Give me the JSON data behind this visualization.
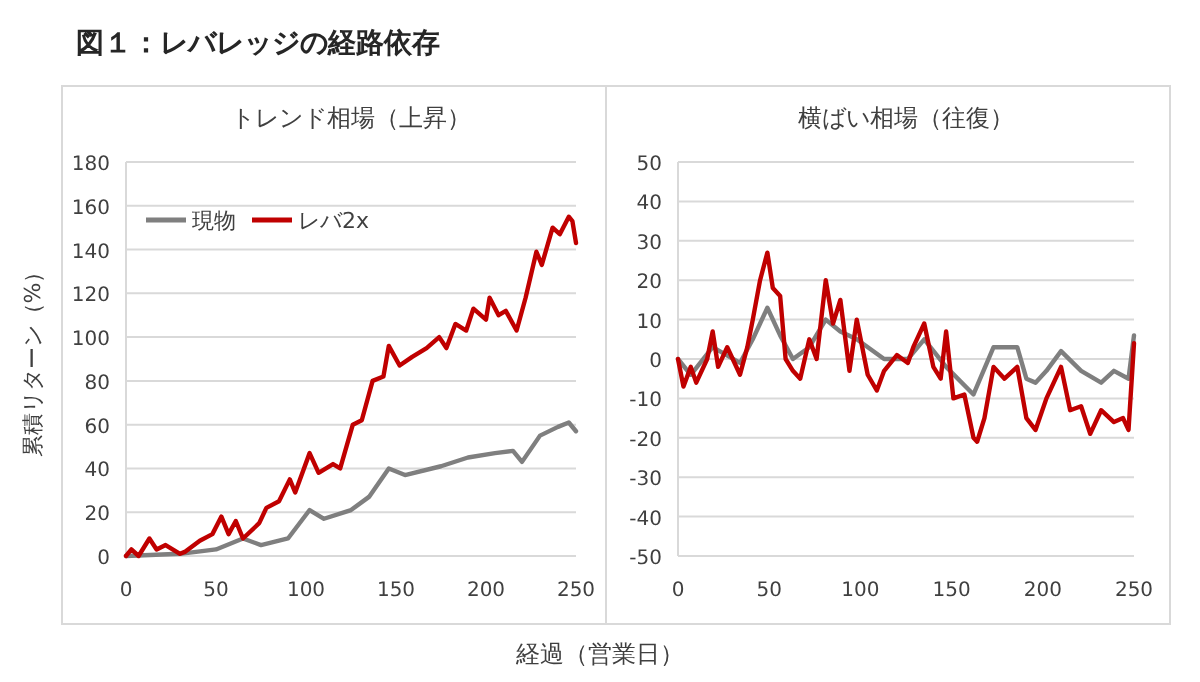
{
  "chart_data": [
    {
      "type": "line",
      "title": "トレンド相場（上昇）",
      "ylabel": "累積リターン（%）",
      "xlabel": "経過（営業日）",
      "annotations": [
        "図１：レバレッジの経路依存"
      ],
      "xlim": [
        0,
        250
      ],
      "xticks": [
        0,
        50,
        100,
        150,
        200,
        250
      ],
      "ylim": [
        0,
        180
      ],
      "yticks": [
        0,
        20,
        40,
        60,
        80,
        100,
        120,
        140,
        160,
        180
      ],
      "grid": "y",
      "legend": "top left",
      "marker": "none",
      "line_style": "solid",
      "series": [
        {
          "name": "現物",
          "color": "#7f7f7f",
          "x": [
            0,
            30,
            50,
            65,
            75,
            90,
            102,
            110,
            125,
            135,
            146,
            155,
            175,
            190,
            205,
            215,
            220,
            230,
            240,
            246,
            250
          ],
          "values": [
            0,
            1,
            3,
            8,
            5,
            8,
            21,
            17,
            21,
            27,
            40,
            37,
            41,
            45,
            47,
            48,
            43,
            55,
            59,
            61,
            57
          ]
        },
        {
          "name": "レバ2x",
          "color": "#c00000",
          "x": [
            0,
            3,
            7,
            13,
            17,
            22,
            30,
            33,
            41,
            48,
            53,
            57,
            61,
            65,
            74,
            78,
            85,
            91,
            94,
            102,
            107,
            115,
            119,
            126,
            131,
            137,
            143,
            146,
            152,
            159,
            167,
            174,
            178,
            183,
            189,
            193,
            200,
            202,
            207,
            211,
            217,
            222,
            228,
            231,
            237,
            241,
            246,
            248,
            250
          ],
          "values": [
            0,
            3,
            0,
            8,
            3,
            5,
            1,
            2,
            7,
            10,
            18,
            10,
            16,
            8,
            15,
            22,
            25,
            35,
            29,
            47,
            38,
            42,
            40,
            60,
            62,
            80,
            82,
            96,
            87,
            91,
            95,
            100,
            95,
            106,
            103,
            113,
            108,
            118,
            110,
            112,
            103,
            118,
            139,
            133,
            150,
            147,
            155,
            153,
            143
          ]
        }
      ]
    },
    {
      "type": "line",
      "title": "横ばい相場（往復）",
      "xlim": [
        0,
        250
      ],
      "xticks": [
        0,
        50,
        100,
        150,
        200,
        250
      ],
      "ylim": [
        -50,
        50
      ],
      "yticks": [
        -50,
        -40,
        -30,
        -20,
        -10,
        0,
        10,
        20,
        30,
        40,
        50
      ],
      "grid": "y",
      "marker": "none",
      "line_style": "solid",
      "series": [
        {
          "color": "#7f7f7f",
          "x": [
            0,
            7,
            19,
            34,
            41,
            45,
            49,
            56,
            63,
            72,
            81,
            89,
            98,
            113,
            126,
            135,
            147,
            162,
            173,
            186,
            191,
            196,
            202,
            210,
            221,
            232,
            239,
            247,
            250
          ],
          "values": [
            0,
            -4,
            3,
            -1,
            5,
            9,
            13,
            6,
            0,
            3,
            10,
            7,
            5,
            0,
            0,
            5,
            -2,
            -9,
            3,
            3,
            -5,
            -6,
            -3,
            2,
            -3,
            -6,
            -3,
            -5,
            6
          ]
        },
        {
          "color": "#c00000",
          "x": [
            0,
            3,
            7,
            10,
            16,
            19,
            22,
            27,
            30,
            34,
            38,
            41,
            45,
            49,
            52,
            56,
            59,
            63,
            67,
            72,
            76,
            81,
            85,
            89,
            94,
            98,
            104,
            109,
            113,
            120,
            126,
            129,
            135,
            140,
            144,
            147,
            151,
            157,
            162,
            164,
            168,
            173,
            179,
            186,
            191,
            196,
            202,
            210,
            215,
            221,
            226,
            232,
            239,
            244,
            247,
            250
          ],
          "values": [
            0,
            -7,
            -2,
            -6,
            0,
            7,
            -2,
            3,
            0,
            -4,
            3,
            10,
            20,
            27,
            18,
            16,
            0,
            -3,
            -5,
            5,
            0,
            20,
            9,
            15,
            -3,
            10,
            -4,
            -8,
            -3,
            1,
            -1,
            3,
            9,
            -2,
            -5,
            7,
            -10,
            -9,
            -20,
            -21,
            -15,
            -2,
            -5,
            -2,
            -15,
            -18,
            -10,
            -2,
            -13,
            -12,
            -19,
            -13,
            -16,
            -15,
            -18,
            4
          ]
        }
      ]
    }
  ]
}
